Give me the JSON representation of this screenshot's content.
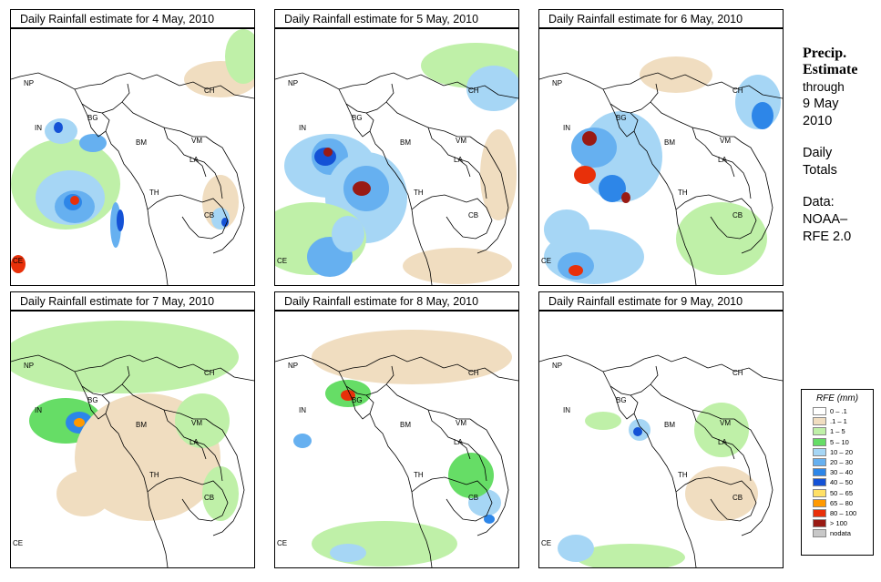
{
  "panels": [
    {
      "title": "Daily Rainfall estimate for  4 May, 2010"
    },
    {
      "title": "Daily Rainfall estimate for  5 May, 2010"
    },
    {
      "title": "Daily Rainfall estimate for  6 May, 2010"
    },
    {
      "title": "Daily Rainfall estimate for  7 May, 2010"
    },
    {
      "title": "Daily Rainfall estimate for  8 May, 2010"
    },
    {
      "title": "Daily Rainfall estimate for  9 May, 2010"
    }
  ],
  "country_labels": [
    "NP",
    "CH",
    "IN",
    "BG",
    "BM",
    "VM",
    "LA",
    "TH",
    "CB",
    "CE"
  ],
  "sidebar": {
    "heading_1": "Precip.",
    "heading_2": "Estimate",
    "through": "through",
    "date_1": "9 May",
    "date_2": "2010",
    "daily": "Daily",
    "totals": "Totals",
    "data_label": "Data:",
    "source_1": "NOAA–",
    "source_2": "RFE 2.0"
  },
  "legend": {
    "title": "RFE (mm)",
    "items": [
      {
        "label": "0 – .1",
        "color": "#ffffff"
      },
      {
        "label": ".1 – 1",
        "color": "#f0ddc0"
      },
      {
        "label": "1 – 5",
        "color": "#bff0a8"
      },
      {
        "label": "5 – 10",
        "color": "#66dd66"
      },
      {
        "label": "10 – 20",
        "color": "#a6d6f5"
      },
      {
        "label": "20 – 30",
        "color": "#66b0f0"
      },
      {
        "label": "30 – 40",
        "color": "#2d86e8"
      },
      {
        "label": "40 – 50",
        "color": "#1452d6"
      },
      {
        "label": "50 – 65",
        "color": "#ffe066"
      },
      {
        "label": "65 – 80",
        "color": "#ff9900"
      },
      {
        "label": "80 – 100",
        "color": "#e8300a"
      },
      {
        "label": "> 100",
        "color": "#991a14"
      },
      {
        "label": "nodata",
        "color": "#c8c8c8"
      }
    ]
  }
}
